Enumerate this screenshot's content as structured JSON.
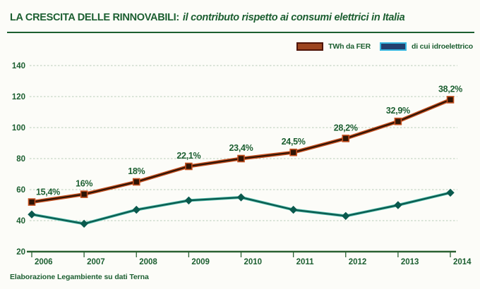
{
  "title": {
    "prefix": "LA CRESCITA DELLE RINNOVABILI:",
    "emphasis": "il contributo rispetto ai consumi elettrici in Italia"
  },
  "legend": {
    "items": [
      {
        "label": "TWh da FER",
        "swatch_fill": "#9c4520",
        "swatch_border": "#4f1508"
      },
      {
        "label": "di cui idroelettrico",
        "swatch_fill": "#23406e",
        "swatch_border": "#35b6e0"
      }
    ]
  },
  "caption": "Elaborazione Legambiente su dati Terna",
  "colors": {
    "text_green": "#1c5f31",
    "grid": "#b7cdb7",
    "axis": "#2a6132",
    "fer_line": "#2f1405",
    "fer_halo": "#c44f1f",
    "hydro_line": "#0b5a4e",
    "hydro_halo": "#4db9a9",
    "background": "#fcfcf8"
  },
  "chart_data": {
    "type": "line",
    "title": "LA CRESCITA DELLE RINNOVABILI: il contributo rispetto ai consumi elettrici in Italia",
    "categories": [
      "2006",
      "2007",
      "2008",
      "2009",
      "2010",
      "2011",
      "2012",
      "2013",
      "2014"
    ],
    "series": [
      {
        "name": "TWh da FER",
        "values": [
          52,
          57,
          65,
          75,
          80,
          84,
          93,
          104,
          118
        ],
        "point_labels": [
          "15,4%",
          "16%",
          "18%",
          "22,1%",
          "23,4%",
          "24,5%",
          "28,2%",
          "32,9%",
          "38,2%"
        ],
        "marker": "square",
        "color": "#2f1405",
        "halo": "#c44f1f"
      },
      {
        "name": "di cui idroelettrico",
        "values": [
          44,
          38,
          47,
          53,
          55,
          47,
          43,
          50,
          58
        ],
        "point_labels": [],
        "marker": "diamond",
        "color": "#0b5a4e",
        "halo": "#4db9a9"
      }
    ],
    "xlabel": "",
    "ylabel": "",
    "ylim": [
      20,
      140
    ],
    "yticks": [
      20,
      40,
      60,
      80,
      100,
      120,
      140
    ],
    "grid": "horizontal-dashed",
    "legend_position": "top-right"
  }
}
